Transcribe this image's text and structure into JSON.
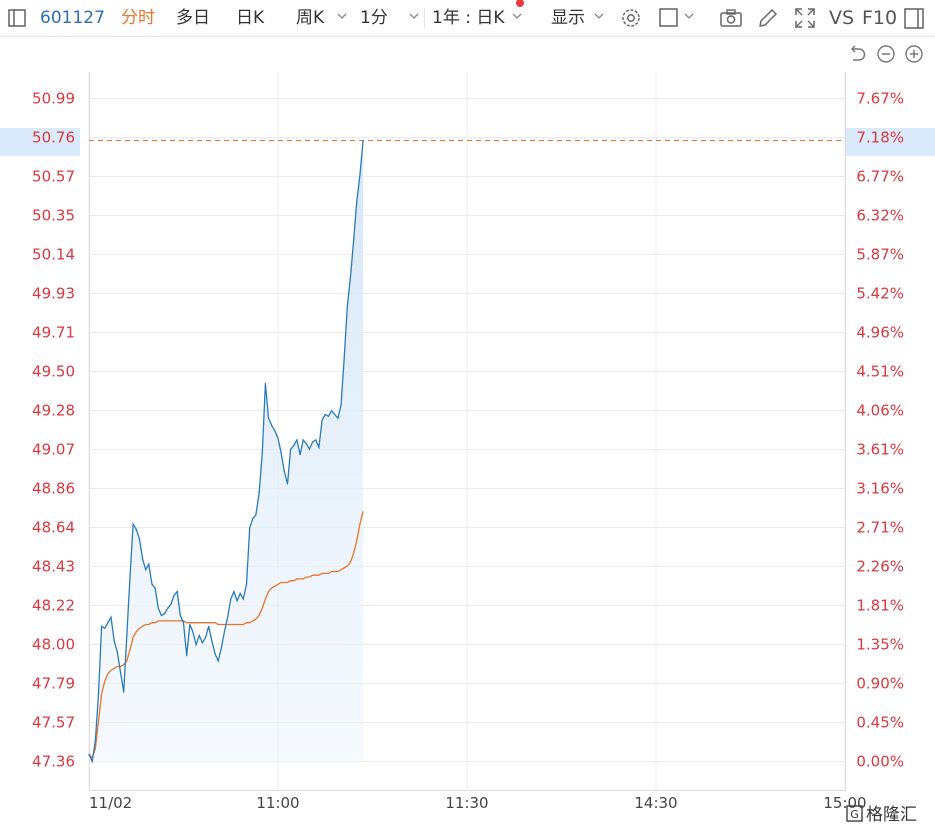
{
  "toolbar": {
    "code": "601127",
    "tabs": [
      "分时",
      "多日",
      "日K",
      "周K",
      "1分"
    ],
    "active_tab": "分时",
    "period_select": "1年 : 日K",
    "display": "显示",
    "vs": "VS",
    "f10": "F10"
  },
  "colors": {
    "price_line": "#2b7bb9",
    "avg_line": "#e8742c",
    "fill_top": "#d6e6f7",
    "label_red": "#d9393f",
    "highlight_bg": "#dbeafb",
    "dashed": "#e8742c"
  },
  "icons": [
    "toggle-panel-icon",
    "settings-icon",
    "checkbox-icon",
    "camera-icon",
    "pen-icon",
    "fullscreen-icon",
    "panel-icon",
    "reset-icon",
    "zoom-out-icon",
    "zoom-in-icon"
  ],
  "watermark": "格隆汇",
  "chart_data": {
    "type": "line",
    "ylim": [
      47.36,
      50.99
    ],
    "price_ticks": [
      "50.99",
      "50.76",
      "50.57",
      "50.35",
      "50.14",
      "49.93",
      "49.71",
      "49.50",
      "49.28",
      "49.07",
      "48.86",
      "48.64",
      "48.43",
      "48.22",
      "48.00",
      "47.79",
      "47.57",
      "47.36"
    ],
    "pct_ticks": [
      "7.67%",
      "7.18%",
      "6.77%",
      "6.32%",
      "5.87%",
      "5.42%",
      "4.96%",
      "4.51%",
      "4.06%",
      "3.61%",
      "3.16%",
      "2.71%",
      "2.26%",
      "1.81%",
      "1.35%",
      "0.90%",
      "0.45%",
      "0.00%"
    ],
    "highlight": {
      "price": "50.76",
      "pct": "7.18%"
    },
    "x_ticks": [
      "11/02",
      "11:00",
      "11:30",
      "14:30",
      "15:00"
    ],
    "session_minutes": 240,
    "series": [
      {
        "type": "price",
        "x": [
          0,
          1,
          2,
          3,
          4,
          5,
          6,
          7,
          8,
          9,
          10,
          11,
          12,
          13,
          14,
          15,
          16,
          17,
          18,
          19,
          20,
          21,
          22,
          23,
          24,
          25,
          26,
          27,
          28,
          29,
          30,
          31,
          32,
          33,
          34,
          35,
          36,
          37,
          38,
          39,
          40,
          41,
          42,
          43,
          44,
          45,
          46,
          47,
          48,
          49,
          50,
          51,
          52,
          53,
          54,
          55,
          56,
          57,
          58,
          59,
          60,
          61,
          62,
          63,
          64,
          65,
          66,
          67,
          68,
          69,
          70,
          71,
          72,
          73,
          74,
          75,
          76,
          77,
          78,
          79,
          80,
          81,
          82,
          83,
          84,
          85,
          86,
          87
        ],
        "values": [
          47.4,
          47.36,
          47.47,
          47.73,
          48.1,
          48.09,
          48.12,
          48.15,
          48.02,
          47.96,
          47.85,
          47.74,
          48.05,
          48.36,
          48.66,
          48.63,
          48.58,
          48.47,
          48.41,
          48.44,
          48.33,
          48.31,
          48.2,
          48.16,
          48.17,
          48.2,
          48.22,
          48.27,
          48.29,
          48.16,
          48.12,
          47.94,
          48.11,
          48.07,
          48.0,
          48.05,
          48.01,
          48.04,
          48.1,
          48.02,
          47.95,
          47.91,
          47.98,
          48.07,
          48.15,
          48.25,
          48.29,
          48.24,
          48.28,
          48.25,
          48.33,
          48.64,
          48.69,
          48.71,
          48.83,
          49.05,
          49.43,
          49.24,
          49.2,
          49.17,
          49.13,
          49.05,
          48.95,
          48.88,
          49.07,
          49.09,
          49.12,
          49.04,
          49.12,
          49.1,
          49.07,
          49.11,
          49.12,
          49.08,
          49.23,
          49.26,
          49.25,
          49.28,
          49.26,
          49.24,
          49.31,
          49.56,
          49.85,
          50.01,
          50.21,
          50.43,
          50.57,
          50.76
        ]
      },
      {
        "type": "average",
        "x": [
          0,
          1,
          2,
          3,
          4,
          5,
          6,
          7,
          8,
          9,
          10,
          11,
          12,
          13,
          14,
          15,
          16,
          17,
          18,
          19,
          20,
          21,
          22,
          23,
          24,
          25,
          26,
          27,
          28,
          29,
          30,
          31,
          32,
          33,
          34,
          35,
          36,
          37,
          38,
          39,
          40,
          41,
          42,
          43,
          44,
          45,
          46,
          47,
          48,
          49,
          50,
          51,
          52,
          53,
          54,
          55,
          56,
          57,
          58,
          59,
          60,
          61,
          62,
          63,
          64,
          65,
          66,
          67,
          68,
          69,
          70,
          71,
          72,
          73,
          74,
          75,
          76,
          77,
          78,
          79,
          80,
          81,
          82,
          83,
          84,
          85,
          86,
          87
        ],
        "values": [
          47.4,
          47.38,
          47.43,
          47.58,
          47.73,
          47.8,
          47.84,
          47.86,
          47.87,
          47.88,
          47.88,
          47.89,
          47.91,
          47.97,
          48.04,
          48.07,
          48.09,
          48.1,
          48.11,
          48.11,
          48.12,
          48.12,
          48.13,
          48.13,
          48.13,
          48.13,
          48.13,
          48.13,
          48.13,
          48.13,
          48.13,
          48.12,
          48.12,
          48.12,
          48.12,
          48.12,
          48.12,
          48.12,
          48.12,
          48.12,
          48.12,
          48.11,
          48.11,
          48.11,
          48.11,
          48.11,
          48.11,
          48.11,
          48.11,
          48.11,
          48.12,
          48.12,
          48.13,
          48.14,
          48.16,
          48.2,
          48.25,
          48.29,
          48.31,
          48.32,
          48.33,
          48.34,
          48.34,
          48.34,
          48.35,
          48.35,
          48.36,
          48.36,
          48.36,
          48.37,
          48.37,
          48.38,
          48.38,
          48.38,
          48.39,
          48.39,
          48.39,
          48.4,
          48.4,
          48.4,
          48.41,
          48.42,
          48.43,
          48.45,
          48.5,
          48.57,
          48.66,
          48.73
        ]
      }
    ]
  }
}
